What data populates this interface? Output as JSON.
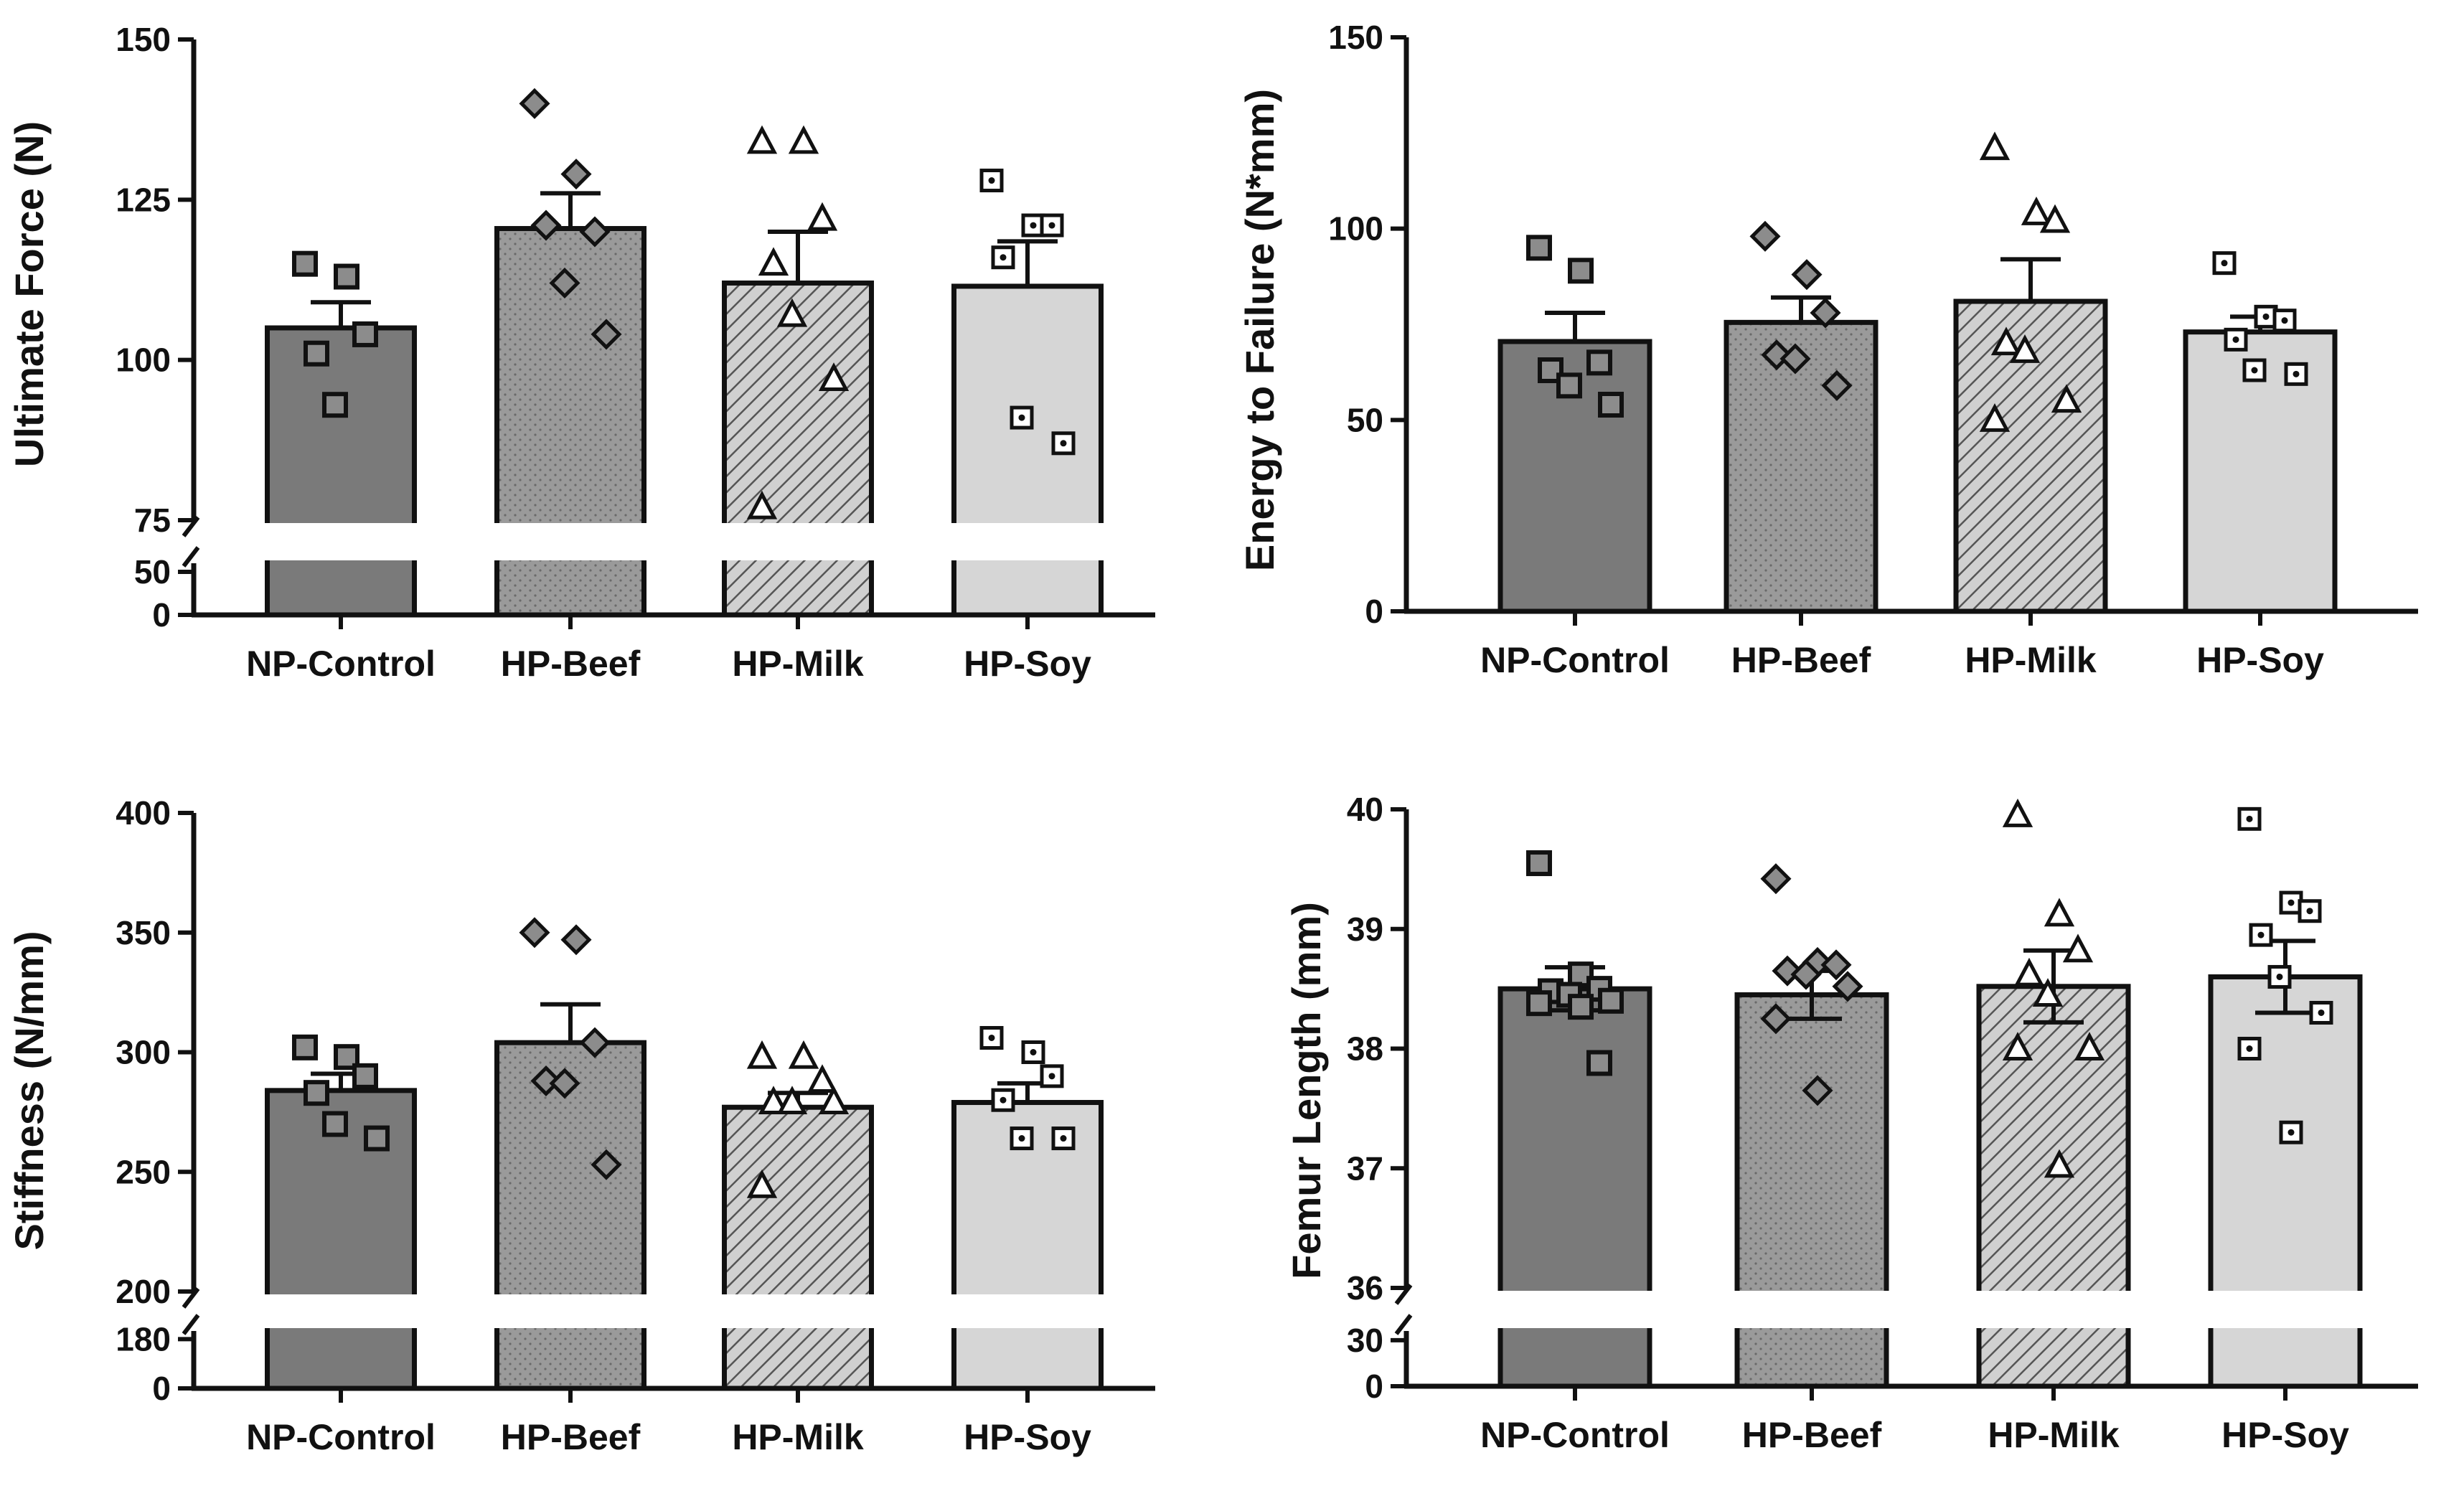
{
  "chart_data": [
    {
      "type": "bar",
      "ylabel": "Ultimate  Force  (N)",
      "categories": [
        "NP-Control",
        "HP-Beef",
        "HP-Milk",
        "HP-Soy"
      ],
      "axis_break": {
        "lower_ticks": [
          0,
          50
        ],
        "upper_ticks": [
          75,
          100,
          125,
          150
        ],
        "lower_range": [
          0,
          60
        ],
        "upper_range": [
          75,
          150
        ]
      },
      "series": [
        {
          "name": "NP-Control",
          "mean": 105,
          "sem": 4,
          "marker": "square",
          "points": [
            115,
            113,
            104,
            101,
            93
          ]
        },
        {
          "name": "HP-Beef",
          "mean": 120.5,
          "sem": 5.5,
          "marker": "diamond",
          "points": [
            140,
            129,
            120,
            121,
            112,
            104
          ]
        },
        {
          "name": "HP-Milk",
          "mean": 112,
          "sem": 8,
          "marker": "triangle",
          "points": [
            134,
            134,
            122,
            115,
            107,
            97,
            77
          ]
        },
        {
          "name": "HP-Soy",
          "mean": 111.5,
          "sem": 7,
          "marker": "dotsquare",
          "points": [
            128,
            121,
            121,
            116,
            91,
            87
          ]
        }
      ]
    },
    {
      "type": "bar",
      "ylabel": "Energy to Failure (N*mm)",
      "categories": [
        "NP-Control",
        "HP-Beef",
        "HP-Milk",
        "HP-Soy"
      ],
      "axis_break": null,
      "yticks": [
        0,
        50,
        100,
        150
      ],
      "ylim": [
        0,
        150
      ],
      "series": [
        {
          "name": "NP-Control",
          "mean": 70.5,
          "sem": 7.5,
          "marker": "square",
          "points": [
            95,
            89,
            65,
            63,
            59,
            54
          ]
        },
        {
          "name": "HP-Beef",
          "mean": 75.5,
          "sem": 6.5,
          "marker": "diamond",
          "points": [
            98,
            88,
            78,
            67,
            66,
            59
          ]
        },
        {
          "name": "HP-Milk",
          "mean": 81,
          "sem": 11,
          "marker": "triangle",
          "points": [
            121,
            104,
            102,
            70,
            68,
            55,
            50
          ]
        },
        {
          "name": "HP-Soy",
          "mean": 73,
          "sem": 4,
          "marker": "dotsquare",
          "points": [
            91,
            77,
            76,
            71,
            63,
            62
          ]
        }
      ]
    },
    {
      "type": "bar",
      "ylabel": "Stiffness (N/mm)",
      "categories": [
        "NP-Control",
        "HP-Beef",
        "HP-Milk",
        "HP-Soy"
      ],
      "axis_break": {
        "lower_ticks": [
          0,
          180
        ],
        "upper_ticks": [
          200,
          250,
          300,
          350,
          400
        ],
        "lower_range": [
          0,
          210
        ],
        "upper_range": [
          200,
          400
        ]
      },
      "series": [
        {
          "name": "NP-Control",
          "mean": 284,
          "sem": 7,
          "marker": "square",
          "points": [
            302,
            298,
            290,
            283,
            270,
            264
          ]
        },
        {
          "name": "HP-Beef",
          "mean": 304,
          "sem": 16,
          "marker": "diamond",
          "points": [
            350,
            347,
            304,
            288,
            287,
            253
          ]
        },
        {
          "name": "HP-Milk",
          "mean": 277,
          "sem": 6,
          "marker": "triangle",
          "points": [
            298,
            298,
            288,
            279,
            279,
            279,
            244
          ]
        },
        {
          "name": "HP-Soy",
          "mean": 279,
          "sem": 8,
          "marker": "dotsquare",
          "points": [
            306,
            300,
            290,
            280,
            264,
            264
          ]
        }
      ]
    },
    {
      "type": "bar",
      "ylabel": "Femur Length (mm)",
      "categories": [
        "NP-Control",
        "HP-Beef",
        "HP-Milk",
        "HP-Soy"
      ],
      "axis_break": {
        "lower_ticks": [
          0,
          30
        ],
        "upper_ticks": [
          36,
          37,
          38,
          39,
          40
        ],
        "lower_range": [
          0,
          36
        ],
        "upper_range": [
          36,
          40
        ]
      },
      "series": [
        {
          "name": "NP-Control",
          "mean": 38.5,
          "sem": 0.18,
          "marker": "square",
          "points": [
            39.55,
            38.62,
            38.5,
            38.48,
            38.45,
            38.4,
            38.38,
            38.35,
            37.88
          ]
        },
        {
          "name": "HP-Beef",
          "mean": 38.45,
          "sem": 0.2,
          "marker": "diamond",
          "points": [
            39.42,
            38.72,
            38.7,
            38.65,
            38.62,
            38.52,
            38.25,
            37.65
          ]
        },
        {
          "name": "HP-Milk",
          "mean": 38.52,
          "sem": 0.3,
          "marker": "triangle",
          "points": [
            39.95,
            39.12,
            38.82,
            38.62,
            38.45,
            38.0,
            38.0,
            37.02
          ]
        },
        {
          "name": "HP-Soy",
          "mean": 38.6,
          "sem": 0.3,
          "marker": "dotsquare",
          "points": [
            39.92,
            39.22,
            39.15,
            38.95,
            38.6,
            38.3,
            38.0,
            37.3
          ]
        }
      ]
    }
  ],
  "colors": {
    "NP-Control": "#7a7a7a",
    "HP-Beef": "#9a9a9a",
    "HP-Milk": "#c8c8c8",
    "HP-Soy": "#d6d6d6",
    "axis": "#111111",
    "marker_fill": "#8c8c8c"
  }
}
